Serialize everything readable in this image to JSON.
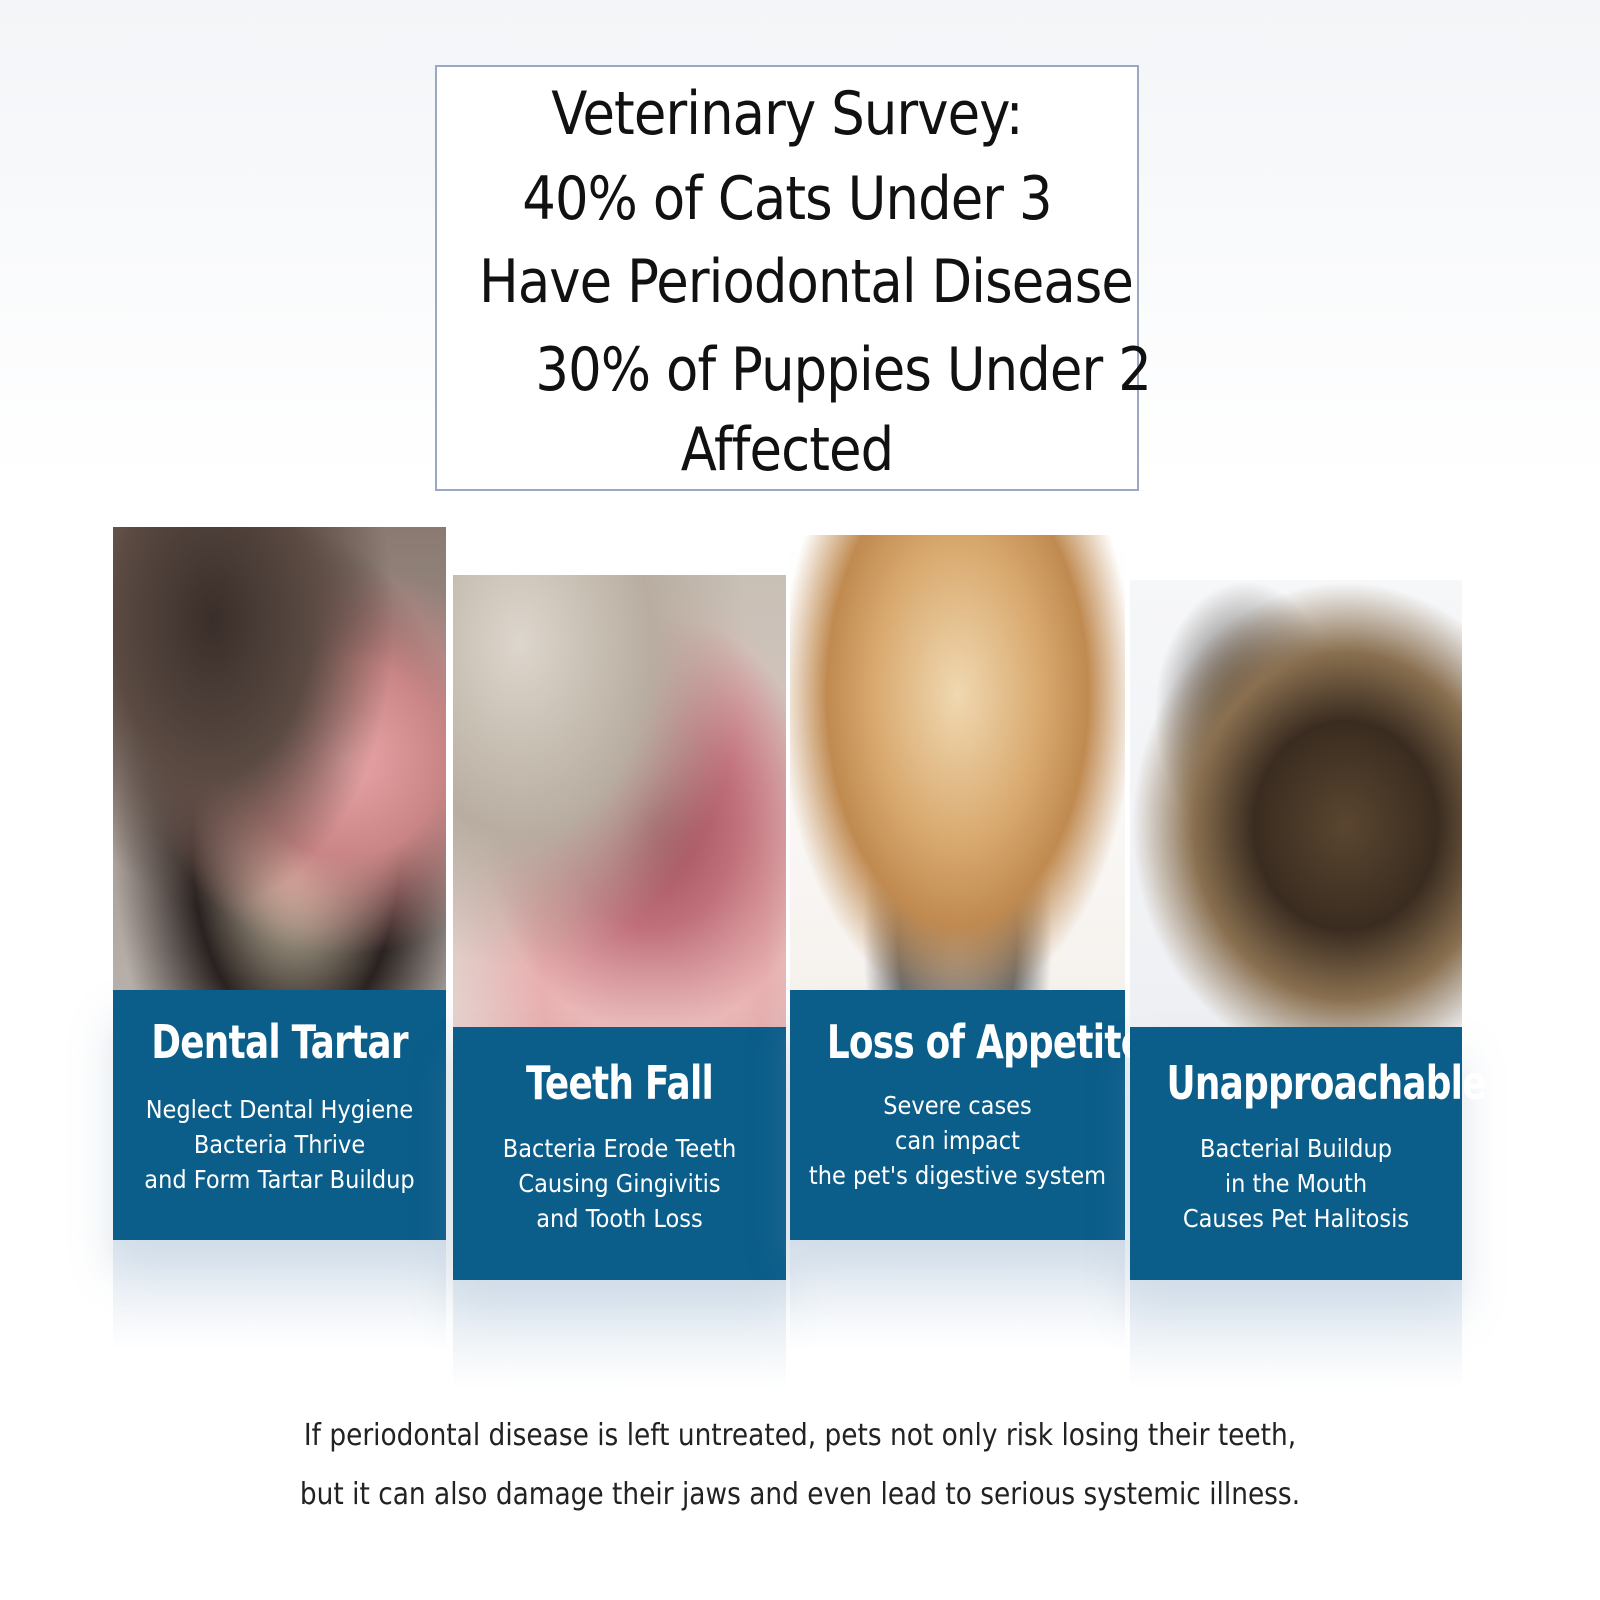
{
  "title": {
    "lines": [
      "Veterinary Survey:",
      "40% of Cats Under 3",
      "Have Periodontal Disease",
      "30% of Puppies Under 2",
      "Affected"
    ]
  },
  "accent_color": "#0b5d8a",
  "panels": [
    {
      "heading": "Dental Tartar",
      "lines": [
        "Neglect Dental Hygiene",
        "Bacteria Thrive",
        "and Form Tartar Buildup"
      ],
      "image": "dog-mouth-tartar-photo"
    },
    {
      "heading": "Teeth Fall",
      "lines": [
        "Bacteria Erode Teeth",
        "Causing Gingivitis",
        "and Tooth Loss"
      ],
      "image": "cat-mouth-gingivitis-photo"
    },
    {
      "heading": "Loss of Appetite",
      "lines": [
        "Severe cases",
        "can impact",
        "the pet's digestive system"
      ],
      "image": "golden-retriever-food-bowl-photo"
    },
    {
      "heading": "Unapproachable",
      "lines": [
        "Bacterial Buildup",
        "in the Mouth",
        "Causes Pet Halitosis"
      ],
      "image": "german-shepherd-barking-photo"
    }
  ],
  "footer": {
    "lines": [
      "If periodontal disease is left untreated, pets not only risk losing their teeth,",
      "but it can also damage their jaws and even lead to serious systemic illness."
    ]
  }
}
